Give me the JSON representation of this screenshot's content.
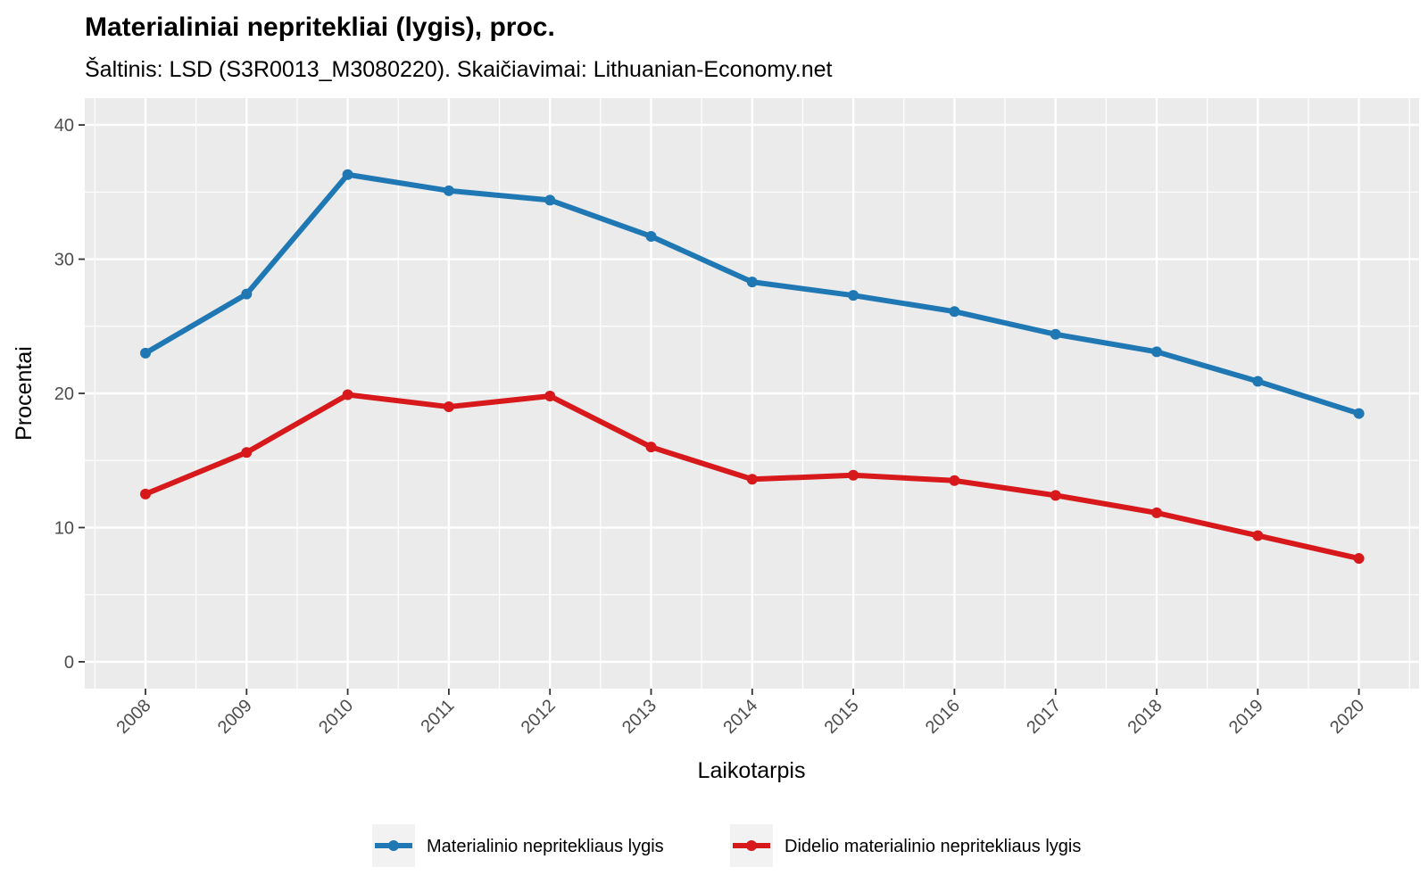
{
  "chart_data": {
    "type": "line",
    "title": "Materialiniai nepritekliai (lygis), proc.",
    "subtitle": "Šaltinis: LSD (S3R0013_M3080220). Skaičiavimai: Lithuanian-Economy.net",
    "xlabel": "Laikotarpis",
    "ylabel": "Procentai",
    "ylim": [
      -2,
      42
    ],
    "yticks": [
      0,
      10,
      20,
      30,
      40
    ],
    "categories": [
      "2008",
      "2009",
      "2010",
      "2011",
      "2012",
      "2013",
      "2014",
      "2015",
      "2016",
      "2017",
      "2018",
      "2019",
      "2020"
    ],
    "grid": true,
    "legend_position": "bottom",
    "series": [
      {
        "name": "Materialinio nepritekliaus lygis",
        "color": "#1f78b4",
        "values": [
          23.0,
          27.4,
          36.3,
          35.1,
          34.4,
          31.7,
          28.3,
          27.3,
          26.1,
          24.4,
          23.1,
          20.9,
          18.5
        ]
      },
      {
        "name": "Didelio materialinio nepritekliaus lygis",
        "color": "#d7191c",
        "values": [
          12.5,
          15.6,
          19.9,
          19.0,
          19.8,
          16.0,
          13.6,
          13.9,
          13.5,
          12.4,
          11.1,
          9.4,
          7.7
        ]
      }
    ]
  }
}
